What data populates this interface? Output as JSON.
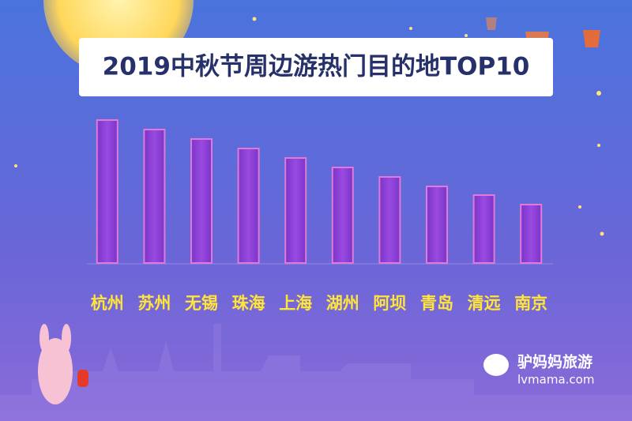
{
  "chart_data": {
    "type": "bar",
    "title": "2019中秋节周边游热门目的地TOP10",
    "categories": [
      "杭州",
      "苏州",
      "无锡",
      "珠海",
      "上海",
      "湖州",
      "阿坝",
      "青岛",
      "清远",
      "南京"
    ],
    "values": [
      181,
      169,
      157,
      145,
      133,
      121,
      109,
      97,
      86,
      74
    ],
    "color": "#8a3fd6"
  },
  "logo": {
    "name": "驴妈妈旅游",
    "url": "lvmama.com"
  }
}
